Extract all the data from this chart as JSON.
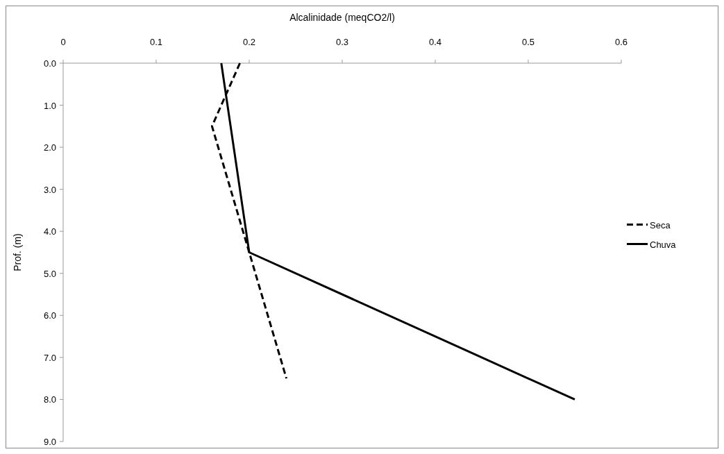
{
  "chart_data": {
    "type": "line",
    "xlabel": "Alcalinidade (meqCO2/l)",
    "ylabel": "Prof. (m)",
    "xlim": [
      0,
      0.6
    ],
    "xticks": [
      0,
      0.1,
      0.2,
      0.3,
      0.4,
      0.5,
      0.6
    ],
    "ylim": [
      9,
      0
    ],
    "yticks": [
      {
        "value": 0,
        "label": "0.0"
      },
      {
        "value": 1,
        "label": "1.0"
      },
      {
        "value": 2,
        "label": "2.0"
      },
      {
        "value": 3,
        "label": "3.0"
      },
      {
        "value": 4,
        "label": "4.0"
      },
      {
        "value": 5,
        "label": "5.0"
      },
      {
        "value": 6,
        "label": "6.0"
      },
      {
        "value": 7,
        "label": "7.0"
      },
      {
        "value": 8,
        "label": "8.0"
      },
      {
        "value": 9,
        "label": "9.0"
      }
    ],
    "legend": "right",
    "grid": false,
    "series": [
      {
        "name": "Seca",
        "color": "#000000",
        "line_style": "dashed",
        "x": [
          0.19,
          0.16,
          0.2,
          0.24
        ],
        "values": [
          0,
          1.5,
          4.5,
          7.5
        ]
      },
      {
        "name": "Chuva",
        "color": "#000000",
        "line_style": "solid",
        "x": [
          0.17,
          0.2,
          0.55
        ],
        "values": [
          0,
          4.5,
          8
        ]
      }
    ]
  }
}
